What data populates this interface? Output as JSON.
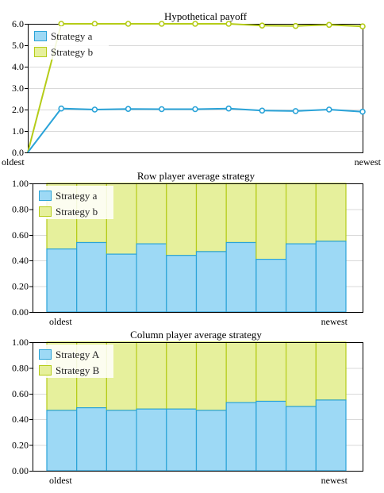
{
  "charts": [
    {
      "type": "line",
      "title": "Hypothetical payoff",
      "xlabels": {
        "start": "oldest",
        "end": "newest"
      },
      "ylim": [
        0,
        6
      ],
      "yticks": [
        "0.0",
        "1.0",
        "2.0",
        "3.0",
        "4.0",
        "5.0",
        "6.0"
      ],
      "legend": [
        "Strategy a",
        "Strategy b"
      ],
      "colors": {
        "a": "#2aa3d8",
        "b": "#b5cc18"
      },
      "grid": true,
      "legend_position": "top-left"
    },
    {
      "type": "bar",
      "title": "Row player average strategy",
      "xlabels": {
        "start": "oldest",
        "end": "newest"
      },
      "ylim": [
        0,
        1
      ],
      "yticks": [
        "0.00",
        "0.20",
        "0.40",
        "0.60",
        "0.80",
        "1.00"
      ],
      "legend": [
        "Strategy a",
        "Strategy b"
      ],
      "colors": {
        "a_fill": "#9dd9f5",
        "a_stroke": "#2aa3d8",
        "b_fill": "#e6f09c",
        "b_stroke": "#b5cc18"
      },
      "grid": true,
      "legend_position": "top-left"
    },
    {
      "type": "bar",
      "title": "Column player average strategy",
      "xlabels": {
        "start": "oldest",
        "end": "newest"
      },
      "ylim": [
        0,
        1
      ],
      "yticks": [
        "0.00",
        "0.20",
        "0.40",
        "0.60",
        "0.80",
        "1.00"
      ],
      "legend": [
        "Strategy A",
        "Strategy B"
      ],
      "colors": {
        "a_fill": "#9dd9f5",
        "a_stroke": "#2aa3d8",
        "b_fill": "#e6f09c",
        "b_stroke": "#b5cc18"
      },
      "grid": true,
      "legend_position": "top-left"
    }
  ],
  "chart_data": [
    {
      "type": "line",
      "title": "Hypothetical payoff",
      "ylim": [
        0,
        6
      ],
      "series": [
        {
          "name": "Strategy a",
          "values": [
            0.0,
            2.05,
            2.0,
            2.03,
            2.02,
            2.02,
            2.05,
            1.95,
            1.93,
            2.0,
            1.9
          ]
        },
        {
          "name": "Strategy b",
          "values": [
            0.0,
            6.0,
            6.0,
            6.0,
            6.0,
            6.0,
            6.0,
            5.92,
            5.9,
            5.95,
            5.88
          ]
        }
      ]
    },
    {
      "type": "bar",
      "title": "Row player average strategy",
      "ylim": [
        0,
        1
      ],
      "series": [
        {
          "name": "Strategy a",
          "values": [
            0.49,
            0.54,
            0.45,
            0.53,
            0.44,
            0.47,
            0.54,
            0.41,
            0.53,
            0.55
          ]
        },
        {
          "name": "Strategy b",
          "values": [
            0.51,
            0.46,
            0.55,
            0.47,
            0.56,
            0.53,
            0.46,
            0.59,
            0.47,
            0.45
          ]
        }
      ]
    },
    {
      "type": "bar",
      "title": "Column player average strategy",
      "ylim": [
        0,
        1
      ],
      "series": [
        {
          "name": "Strategy A",
          "values": [
            0.47,
            0.49,
            0.47,
            0.48,
            0.48,
            0.47,
            0.53,
            0.54,
            0.5,
            0.55
          ]
        },
        {
          "name": "Strategy B",
          "values": [
            0.53,
            0.51,
            0.53,
            0.52,
            0.52,
            0.53,
            0.47,
            0.46,
            0.5,
            0.45
          ]
        }
      ]
    }
  ]
}
